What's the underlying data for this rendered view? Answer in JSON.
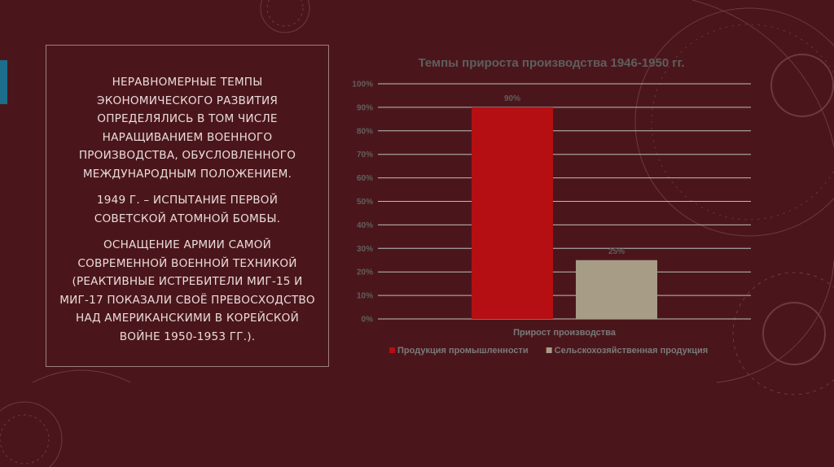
{
  "text_panel": {
    "paragraph_1": "Неравномерные темпы экономического развития определялись в том числе наращиванием военного производства, обусловленного международным положением.",
    "paragraph_2": "1949 г. – испытание первой советской атомной бомбы.",
    "paragraph_3": "Оснащение армии самой современной военной техникой (реактивные истребители МИГ-15 и МИГ-17 показали своё превосходство над американскими в Корейской войне 1950-1953 гг.)."
  },
  "colors": {
    "background": "#4b161b",
    "accent": "#1c6e8c",
    "industry": "#b50f13",
    "agriculture": "#a79d86"
  },
  "chart_data": {
    "type": "bar",
    "title": "Темпы прироста производства 1946-1950 гг.",
    "categories": [
      "Прирост производства"
    ],
    "series": [
      {
        "name": "Продукция промышленности",
        "values": [
          90
        ],
        "color": "#b50f13",
        "label": "90%"
      },
      {
        "name": "Сельскохозяйственная продукция",
        "values": [
          25
        ],
        "color": "#a79d86",
        "label": "25%"
      }
    ],
    "y_ticks": [
      "0%",
      "10%",
      "20%",
      "30%",
      "40%",
      "50%",
      "60%",
      "70%",
      "80%",
      "90%",
      "100%"
    ],
    "ylim": [
      0,
      100
    ],
    "grid": true,
    "legend": "bottom"
  }
}
